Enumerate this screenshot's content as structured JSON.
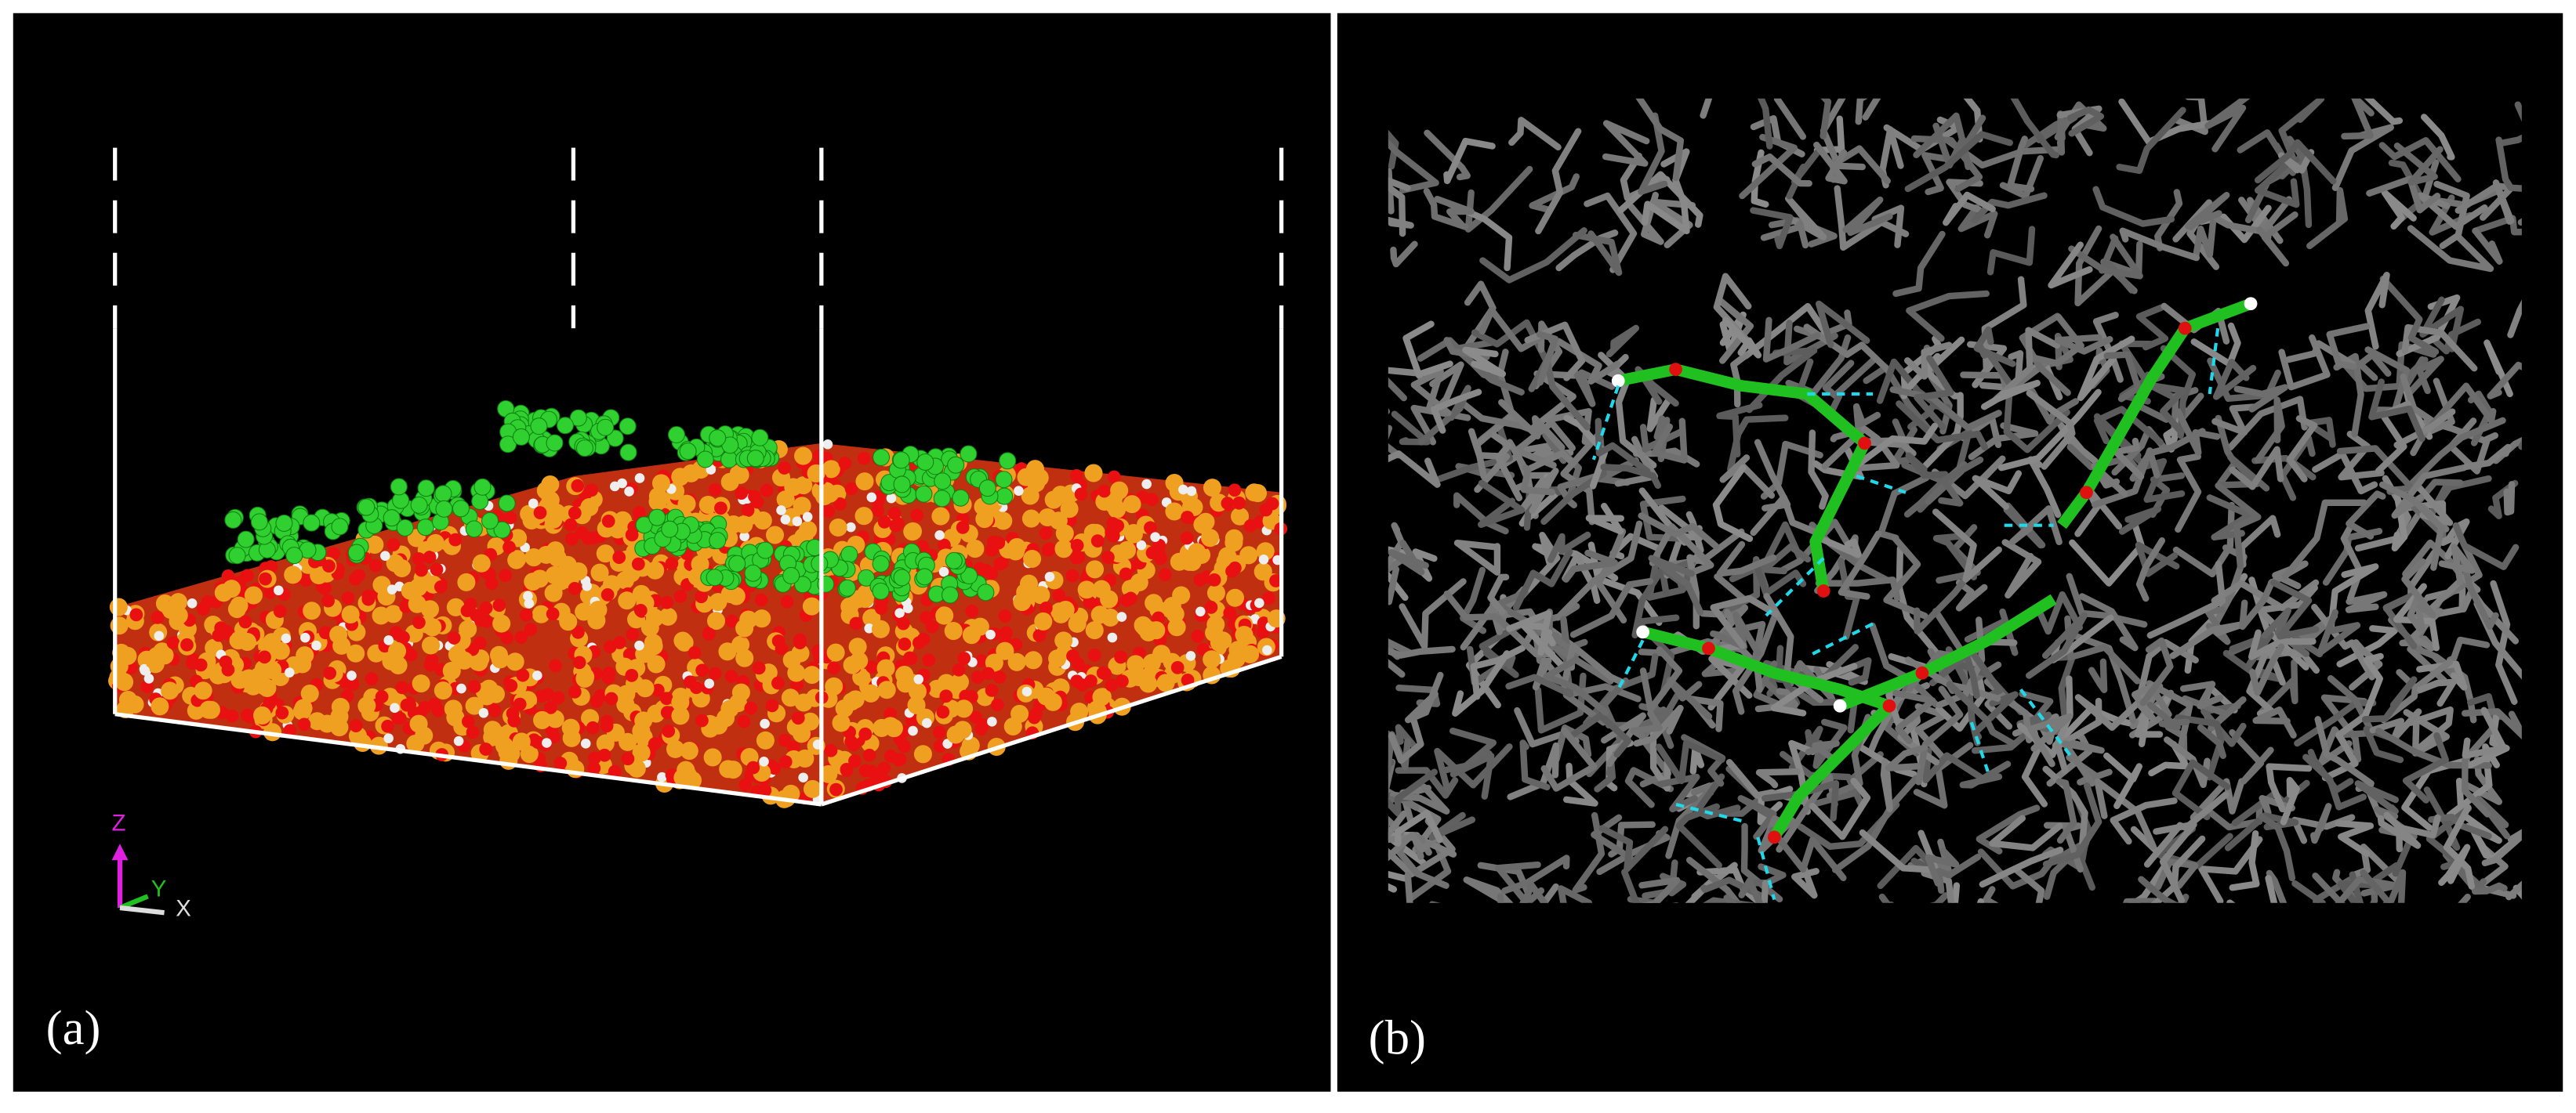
{
  "panels": [
    {
      "label": "(a)",
      "axes": {
        "z": "Z",
        "y": "Y",
        "x": "X"
      }
    },
    {
      "label": "(b)"
    }
  ]
}
